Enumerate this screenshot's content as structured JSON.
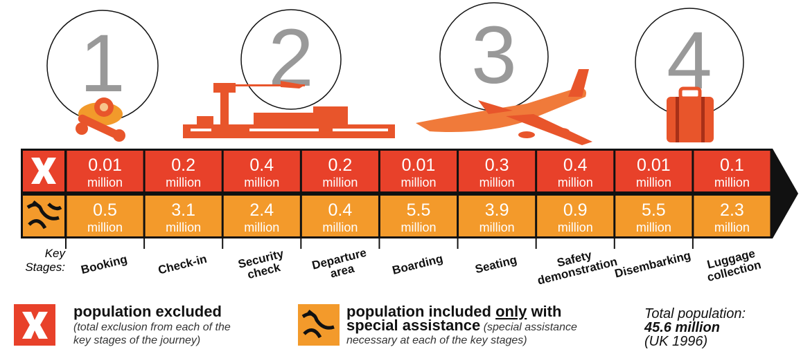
{
  "phases": [
    1,
    2,
    3,
    4
  ],
  "table": {
    "unit": "million",
    "excluded": [
      0.01,
      0.2,
      0.4,
      0.2,
      0.01,
      0.3,
      0.4,
      0.01,
      0.1
    ],
    "assisted": [
      0.5,
      3.1,
      2.4,
      0.4,
      5.5,
      3.9,
      0.9,
      5.5,
      2.3
    ]
  },
  "key_label": [
    "Key",
    "Stages:"
  ],
  "stages": [
    [
      "Booking"
    ],
    [
      "Check-in"
    ],
    [
      "Security",
      "check"
    ],
    [
      "Departure",
      "area"
    ],
    [
      "Boarding"
    ],
    [
      "Seating"
    ],
    [
      "Safety",
      "demonstration"
    ],
    [
      "Disembarking"
    ],
    [
      "Luggage",
      "collection"
    ]
  ],
  "legend": {
    "excluded": {
      "title": "population excluded",
      "note": [
        "(total exclusion from each of the",
        "key stages of the journey)"
      ]
    },
    "assisted": {
      "title": [
        "population included ",
        "only",
        " with"
      ],
      "title_line2": "special assistance",
      "note": [
        " (special assistance",
        "necessary at each of the key stages)"
      ]
    }
  },
  "total": {
    "label": "Total population:",
    "value": "45.6 million",
    "source": "(UK 1996)"
  }
}
